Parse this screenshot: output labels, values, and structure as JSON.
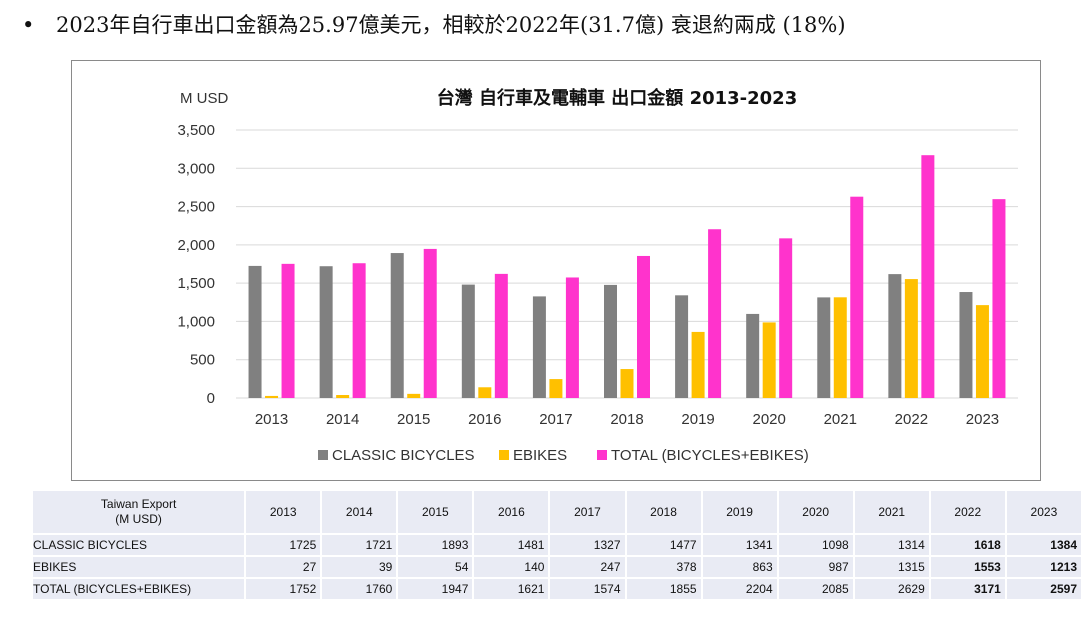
{
  "bullet": {
    "symbol": "•",
    "text": "2023年自行車出口金額為25.97億美元，相較於2022年(31.7億) 衰退約兩成 (18%)"
  },
  "chart_data": {
    "type": "bar",
    "title": "台灣 自行車及電輔車 出口金額 2013-2023",
    "ylabel": "M USD",
    "xlabel": "",
    "ylim": [
      0,
      3500
    ],
    "yticks": [
      0,
      500,
      1000,
      1500,
      2000,
      2500,
      3000,
      3500
    ],
    "ytick_labels": [
      "0",
      "500",
      "1,000",
      "1,500",
      "2,000",
      "2,500",
      "3,000",
      "3,500"
    ],
    "grid": true,
    "legend_position": "bottom",
    "categories": [
      "2013",
      "2014",
      "2015",
      "2016",
      "2017",
      "2018",
      "2019",
      "2020",
      "2021",
      "2022",
      "2023"
    ],
    "series": [
      {
        "name": "CLASSIC BICYCLES",
        "color": "#808080",
        "values": [
          1725,
          1721,
          1893,
          1481,
          1327,
          1477,
          1341,
          1098,
          1314,
          1618,
          1384
        ]
      },
      {
        "name": "EBIKES",
        "color": "#ffc000",
        "values": [
          27,
          39,
          54,
          140,
          247,
          378,
          863,
          987,
          1315,
          1553,
          1213
        ]
      },
      {
        "name": "TOTAL (BICYCLES+EBIKES)",
        "color": "#ff33cc",
        "values": [
          1752,
          1760,
          1947,
          1621,
          1574,
          1855,
          2204,
          2085,
          2629,
          3171,
          2597
        ]
      }
    ]
  },
  "table": {
    "corner_line1": "Taiwan Export",
    "corner_line2": "(M USD)",
    "years": [
      "2013",
      "2014",
      "2015",
      "2016",
      "2017",
      "2018",
      "2019",
      "2020",
      "2021",
      "2022",
      "2023"
    ],
    "rows": [
      {
        "label": "CLASSIC BICYCLES",
        "values": [
          "1725",
          "1721",
          "1893",
          "1481",
          "1327",
          "1477",
          "1341",
          "1098",
          "1314",
          "1618",
          "1384"
        ]
      },
      {
        "label": "EBIKES",
        "values": [
          "27",
          "39",
          "54",
          "140",
          "247",
          "378",
          "863",
          "987",
          "1315",
          "1553",
          "1213"
        ]
      },
      {
        "label": "TOTAL (BICYCLES+EBIKES)",
        "values": [
          "1752",
          "1760",
          "1947",
          "1621",
          "1574",
          "1855",
          "2204",
          "2085",
          "2629",
          "3171",
          "2597"
        ]
      }
    ],
    "bold_columns": [
      "2022",
      "2023"
    ]
  }
}
